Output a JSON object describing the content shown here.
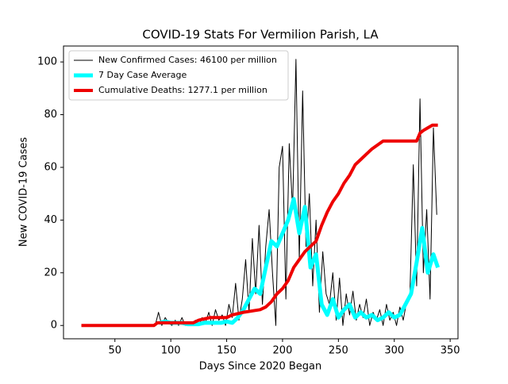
{
  "chart_data": {
    "type": "line",
    "title": "COVID-19 Stats For Vermilion Parish, LA",
    "x_label": "Days Since 2020 Began",
    "y_label": "New COVID-19 Cases",
    "xlim": [
      4,
      357
    ],
    "xticks": [
      50,
      100,
      150,
      200,
      250,
      300,
      350
    ],
    "ylim": [
      -5.05,
      106.05
    ],
    "yticks": [
      0,
      20,
      40,
      60,
      80,
      100
    ],
    "legend": "upper left",
    "series": [
      {
        "name": "New Confirmed Cases: 46100 per million",
        "color": "#000000",
        "width": 1,
        "x": [
          20,
          23,
          26,
          29,
          32,
          35,
          38,
          41,
          44,
          47,
          50,
          53,
          56,
          59,
          62,
          65,
          68,
          71,
          74,
          77,
          80,
          83,
          86,
          89,
          92,
          95,
          98,
          101,
          104,
          107,
          110,
          113,
          116,
          119,
          122,
          125,
          128,
          131,
          134,
          137,
          140,
          143,
          146,
          149,
          152,
          155,
          158,
          161,
          164,
          167,
          170,
          173,
          176,
          179,
          182,
          185,
          188,
          191,
          194,
          197,
          200,
          203,
          206,
          209,
          212,
          215,
          218,
          221,
          224,
          227,
          230,
          233,
          236,
          239,
          242,
          245,
          248,
          251,
          254,
          257,
          260,
          263,
          266,
          269,
          272,
          275,
          278,
          281,
          284,
          287,
          290,
          293,
          296,
          299,
          302,
          305,
          308,
          311,
          314,
          317,
          320,
          323,
          326,
          329,
          332,
          335,
          338
        ],
        "values": [
          0,
          0,
          0,
          0,
          0,
          0,
          0,
          0,
          0,
          0,
          0,
          0,
          0,
          0,
          0,
          0,
          0,
          0,
          0,
          0,
          0,
          0,
          0,
          5,
          0,
          3,
          1,
          0,
          2,
          0,
          3,
          0,
          1,
          0,
          2,
          0,
          3,
          1,
          5,
          0,
          6,
          2,
          4,
          0,
          8,
          3,
          16,
          2,
          10,
          25,
          5,
          33,
          12,
          38,
          8,
          30,
          44,
          20,
          0,
          60,
          68,
          10,
          69,
          44,
          101,
          25,
          89,
          30,
          50,
          15,
          40,
          5,
          28,
          12,
          8,
          20,
          2,
          18,
          0,
          12,
          4,
          13,
          2,
          8,
          3,
          10,
          0,
          5,
          2,
          6,
          0,
          8,
          2,
          5,
          0,
          7,
          2,
          9,
          12,
          61,
          15,
          86,
          20,
          44,
          10,
          75,
          42
        ]
      },
      {
        "name": "7 Day Case Average",
        "color": "#00ffff",
        "width": 5,
        "x": [
          90,
          95,
          100,
          105,
          110,
          115,
          120,
          125,
          130,
          135,
          140,
          145,
          150,
          155,
          160,
          165,
          170,
          175,
          180,
          185,
          190,
          195,
          200,
          205,
          210,
          215,
          220,
          225,
          230,
          235,
          240,
          245,
          250,
          255,
          260,
          265,
          270,
          275,
          280,
          285,
          290,
          295,
          300,
          305,
          310,
          315,
          320,
          325,
          330,
          335,
          339
        ],
        "values": [
          1,
          1.5,
          1,
          1,
          1,
          0.5,
          0.5,
          0.5,
          1,
          1,
          1,
          1,
          1.5,
          1,
          3,
          6,
          10,
          14,
          12,
          22,
          32,
          30,
          35,
          40,
          48,
          35,
          45,
          22,
          27,
          8,
          4,
          10,
          3,
          6,
          8,
          3,
          5,
          3,
          4,
          2,
          3,
          5,
          3,
          4,
          8,
          12,
          24,
          37,
          20,
          27,
          22
        ]
      },
      {
        "name": "Cumulative Deaths: 1277.1 per million",
        "color": "#ee0000",
        "width": 4,
        "x": [
          20,
          85,
          88,
          120,
          125,
          135,
          150,
          155,
          165,
          180,
          185,
          190,
          195,
          200,
          205,
          210,
          215,
          220,
          225,
          230,
          235,
          240,
          245,
          250,
          255,
          260,
          265,
          270,
          275,
          280,
          290,
          320,
          323,
          326,
          330,
          334,
          339
        ],
        "values": [
          0,
          0,
          1,
          1,
          2,
          3,
          3,
          4,
          5,
          6,
          7,
          9,
          12,
          14,
          17,
          22,
          25,
          28,
          30,
          32,
          38,
          43,
          47,
          50,
          54,
          57,
          61,
          63,
          65,
          67,
          70,
          70,
          73,
          74,
          75,
          76,
          76
        ]
      }
    ]
  }
}
